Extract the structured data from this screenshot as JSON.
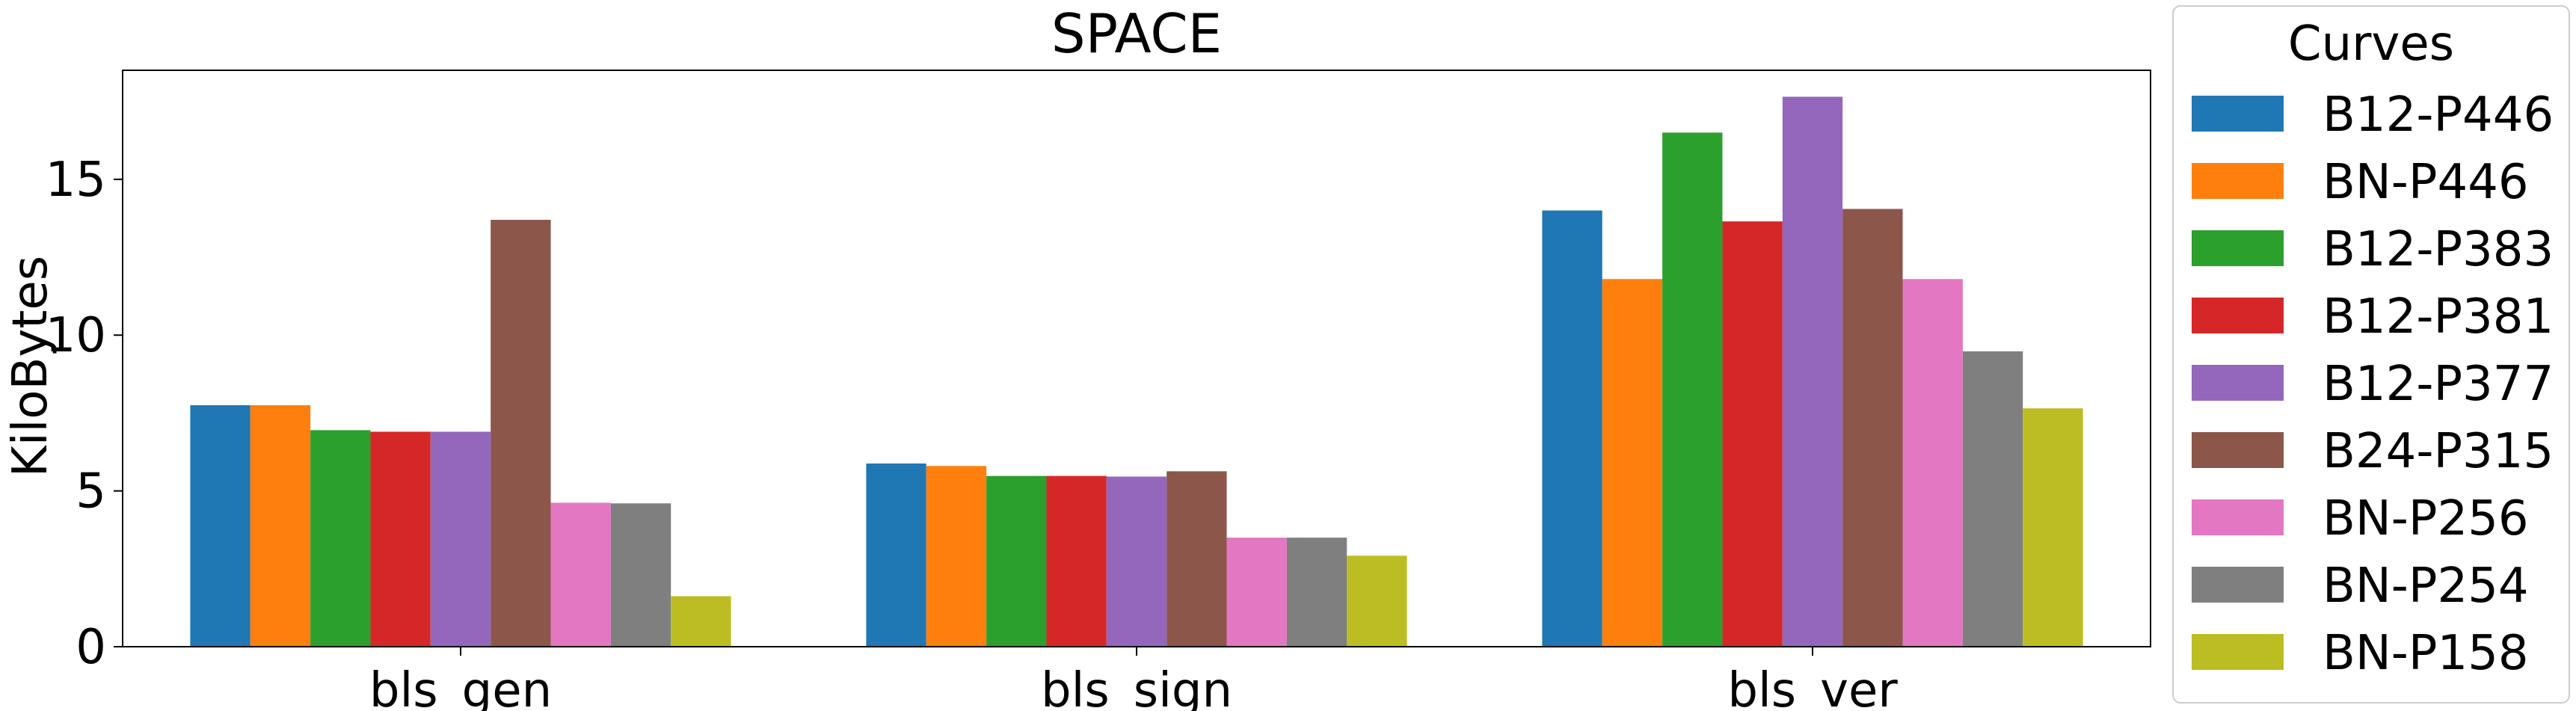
{
  "chart_data": {
    "type": "bar",
    "title": "SPACE",
    "xlabel": "",
    "ylabel": "KiloBytes",
    "ylim": [
      0,
      18.5
    ],
    "yticks": [
      0,
      5,
      10,
      15
    ],
    "grid": false,
    "legend_title": "Curves",
    "legend_position": "right-outside",
    "categories": [
      "bls_gen",
      "bls_sign",
      "bls_ver"
    ],
    "series": [
      {
        "name": "B12-P446",
        "color": "#1f77b4",
        "values": [
          7.75,
          5.88,
          14.0
        ]
      },
      {
        "name": "BN-P446",
        "color": "#ff7f0e",
        "values": [
          7.75,
          5.8,
          11.8
        ]
      },
      {
        "name": "B12-P383",
        "color": "#2ca02c",
        "values": [
          6.95,
          5.48,
          16.5
        ]
      },
      {
        "name": "B12-P381",
        "color": "#d62728",
        "values": [
          6.9,
          5.48,
          13.65
        ]
      },
      {
        "name": "B12-P377",
        "color": "#9467bd",
        "values": [
          6.9,
          5.46,
          17.65
        ]
      },
      {
        "name": "B24-P315",
        "color": "#8c564b",
        "values": [
          13.7,
          5.63,
          14.05
        ]
      },
      {
        "name": "BN-P256",
        "color": "#e377c2",
        "values": [
          4.62,
          3.5,
          11.8
        ]
      },
      {
        "name": "BN-P254",
        "color": "#7f7f7f",
        "values": [
          4.6,
          3.5,
          9.48
        ]
      },
      {
        "name": "BN-P158",
        "color": "#bcbd22",
        "values": [
          1.62,
          2.92,
          7.65
        ]
      }
    ]
  }
}
